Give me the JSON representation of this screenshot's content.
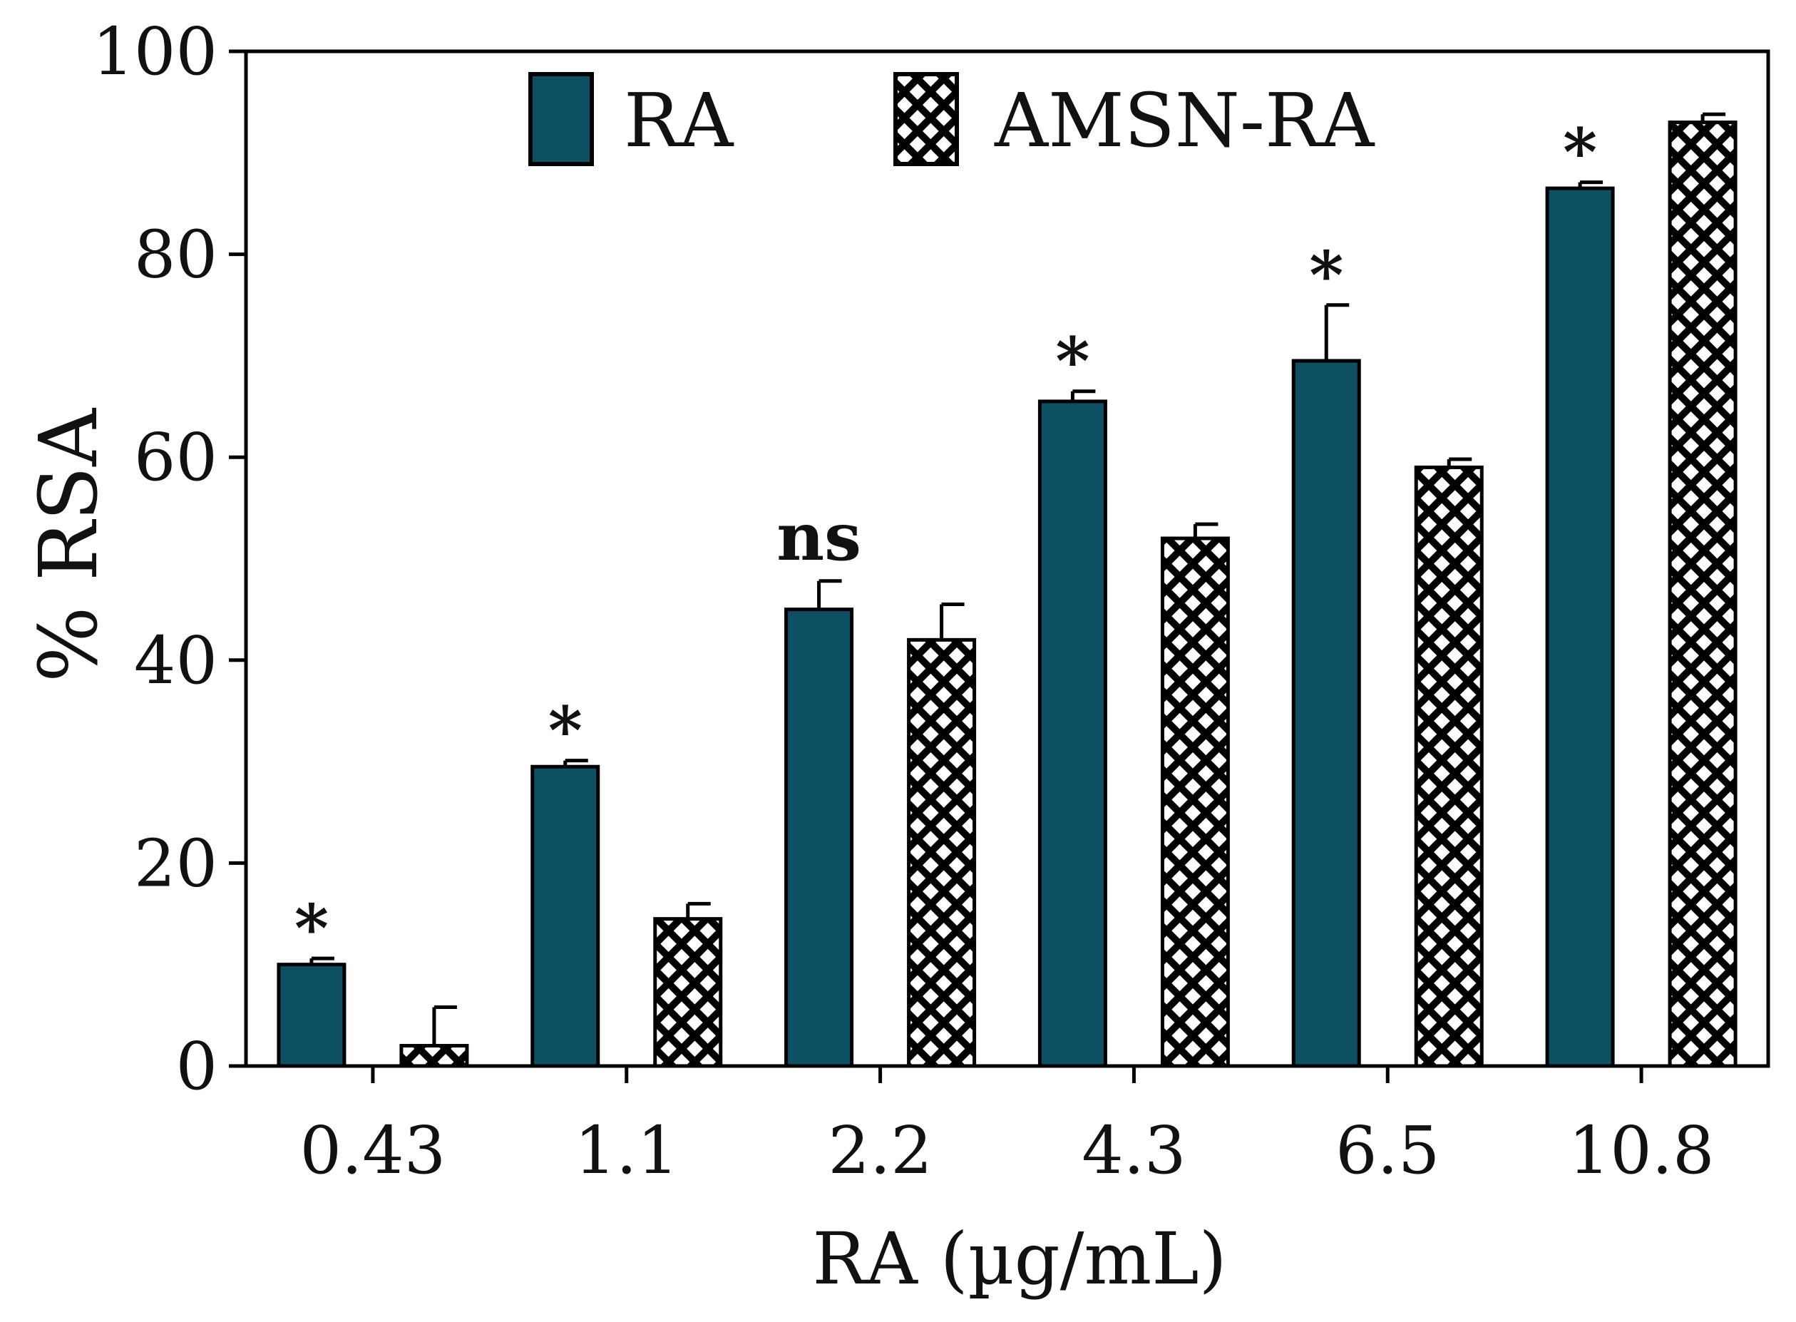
{
  "chart_data": {
    "type": "bar",
    "title": "",
    "xlabel": "RA (µg/mL)",
    "ylabel": "% RSA",
    "categories": [
      "0.43",
      "1.1",
      "2.2",
      "4.3",
      "6.5",
      "10.8"
    ],
    "ylim": [
      0,
      100
    ],
    "yticks": [
      0,
      20,
      40,
      60,
      80,
      100
    ],
    "ytick_labels": [
      "0",
      "20",
      "40",
      "60",
      "80",
      "100"
    ],
    "legend_position": "top-center",
    "series": [
      {
        "name": "RA",
        "color": "#0d4f63",
        "pattern": "solid",
        "values": [
          10,
          29.5,
          45,
          65.5,
          69.5,
          86.5
        ],
        "errors": [
          0.6,
          0.6,
          2.8,
          1.0,
          5.5,
          0.6
        ]
      },
      {
        "name": "AMSN-RA",
        "color": "#000000",
        "pattern": "crosshatch",
        "values": [
          2,
          14.5,
          42,
          52,
          59,
          93
        ],
        "errors": [
          3.8,
          1.5,
          3.5,
          1.4,
          0.8,
          0.8
        ]
      }
    ],
    "significance": [
      "*",
      "*",
      "ns",
      "*",
      "*",
      "*"
    ]
  }
}
